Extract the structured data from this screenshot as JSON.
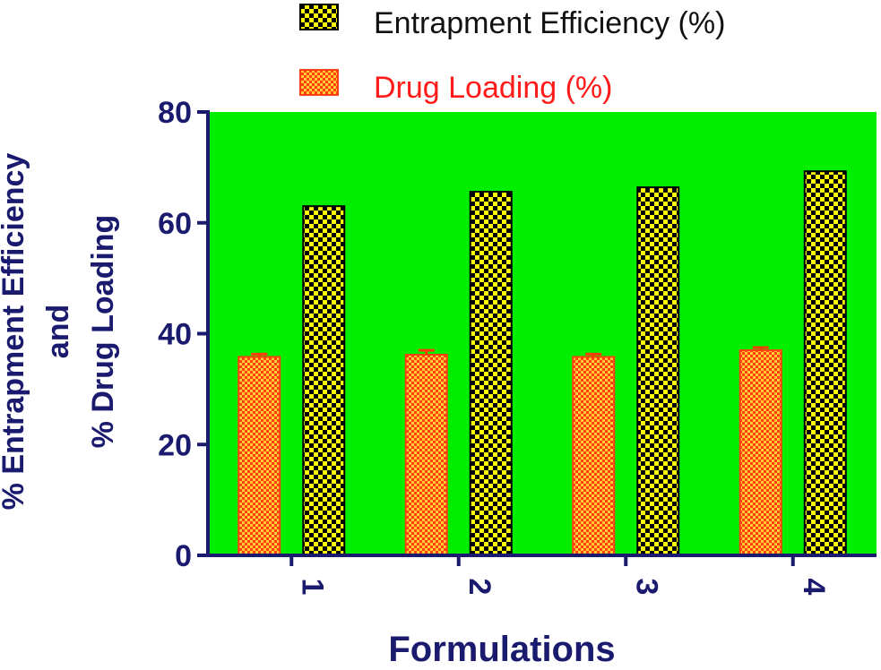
{
  "chart_data": {
    "type": "bar",
    "categories": [
      "1",
      "2",
      "3",
      "4"
    ],
    "series": [
      {
        "name": "Drug Loading (%)",
        "values": [
          35.8,
          36.2,
          35.8,
          37.0
        ],
        "errors": [
          0.5,
          0.8,
          0.5,
          0.5
        ],
        "color": "#ff3b0a",
        "pattern": "orange-checker"
      },
      {
        "name": "Entrapment Efficiency (%)",
        "values": [
          63.0,
          65.6,
          66.4,
          69.3
        ],
        "errors": [
          0,
          0,
          0,
          0
        ],
        "color": "#000000",
        "pattern": "yellow-black-checker"
      }
    ],
    "xlabel": "Formulations",
    "ylabel": [
      "% Entrapment Efficiency",
      "and",
      "% Drug Loading"
    ],
    "ylim": [
      0,
      80
    ],
    "yticks": [
      0,
      20,
      40,
      60,
      80
    ],
    "plot_background": "#00ee00",
    "axis_color": "#1a1a6e",
    "grid": false,
    "legend_position": "top"
  }
}
